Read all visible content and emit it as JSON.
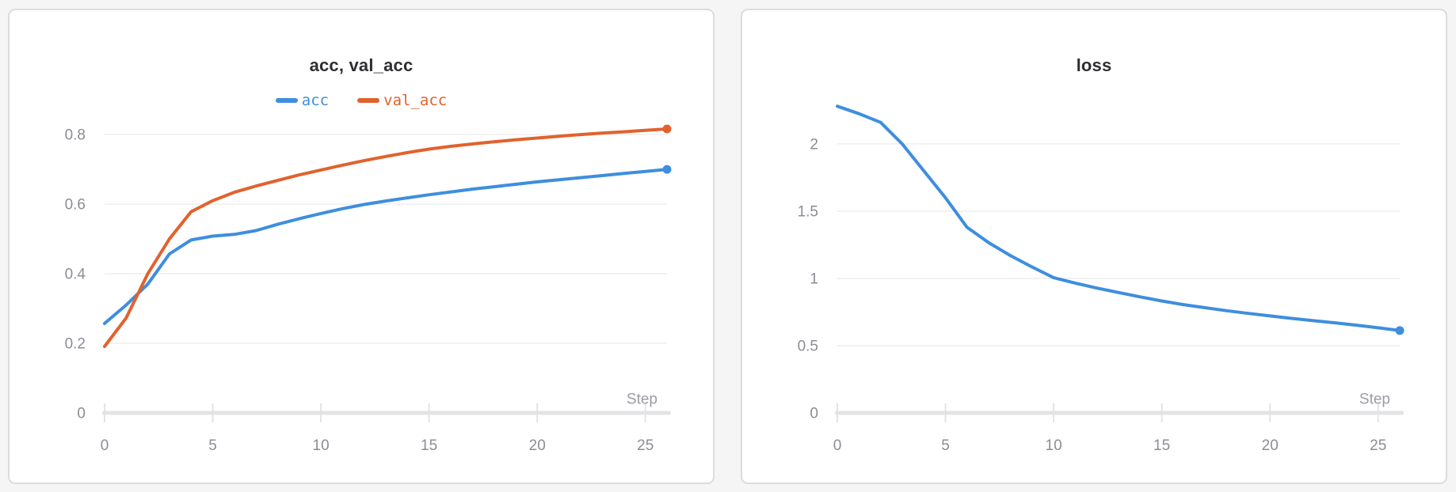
{
  "page": {
    "background_color": "#f5f5f6"
  },
  "style": {
    "panel_background": "#ffffff",
    "panel_border_color": "#dcdcdc",
    "title_color": "#2f2f33",
    "tick_label_color": "#8c8c96",
    "axis_label_color": "#9b9ba3",
    "gridline_color": "#ededee",
    "axis_bar_color": "#e4e4e6",
    "tick_mark_color": "#e1e1e4",
    "series_blue": "#3e8ede",
    "series_orange": "#e1622d"
  },
  "chart_data": [
    {
      "type": "line",
      "title": "acc, val_acc",
      "xlabel": "Step",
      "grid": true,
      "legend": true,
      "legend_position": "top",
      "xlim": [
        0,
        26
      ],
      "ylim": [
        0,
        0.882
      ],
      "x": [
        0,
        1,
        2,
        3,
        4,
        5,
        6,
        7,
        8,
        9,
        10,
        11,
        12,
        13,
        14,
        15,
        16,
        17,
        18,
        19,
        20,
        21,
        22,
        23,
        24,
        25,
        26
      ],
      "x_ticks": [
        0,
        5,
        10,
        15,
        20,
        25
      ],
      "x_tick_labels": [
        "0",
        "5",
        "10",
        "15",
        "20",
        "25"
      ],
      "y_ticks": [
        {
          "value": 0,
          "label": "0"
        },
        {
          "value": 0.2,
          "label": "0.2"
        },
        {
          "value": 0.4,
          "label": "0.4"
        },
        {
          "value": 0.6,
          "label": "0.6"
        },
        {
          "value": 0.8,
          "label": "0.8"
        }
      ],
      "series": [
        {
          "name": "acc",
          "color": "#3e8ede",
          "endpoint_dot": true,
          "values": [
            0.257,
            0.31,
            0.37,
            0.457,
            0.497,
            0.508,
            0.513,
            0.524,
            0.542,
            0.558,
            0.573,
            0.587,
            0.599,
            0.609,
            0.618,
            0.627,
            0.635,
            0.643,
            0.65,
            0.657,
            0.664,
            0.67,
            0.676,
            0.682,
            0.688,
            0.694,
            0.7
          ]
        },
        {
          "name": "val_acc",
          "color": "#e1622d",
          "endpoint_dot": true,
          "values": [
            0.191,
            0.273,
            0.4,
            0.5,
            0.578,
            0.61,
            0.634,
            0.652,
            0.668,
            0.684,
            0.698,
            0.712,
            0.725,
            0.737,
            0.748,
            0.758,
            0.766,
            0.773,
            0.779,
            0.785,
            0.79,
            0.795,
            0.8,
            0.804,
            0.808,
            0.812,
            0.816
          ]
        }
      ]
    },
    {
      "type": "line",
      "title": "loss",
      "xlabel": "Step",
      "grid": true,
      "legend": false,
      "xlim": [
        0,
        26
      ],
      "ylim": [
        0,
        2.282
      ],
      "x": [
        0,
        1,
        2,
        3,
        4,
        5,
        6,
        7,
        8,
        9,
        10,
        11,
        12,
        13,
        14,
        15,
        16,
        17,
        18,
        19,
        20,
        21,
        22,
        23,
        24,
        25,
        26
      ],
      "x_ticks": [
        0,
        5,
        10,
        15,
        20,
        25
      ],
      "x_tick_labels": [
        "0",
        "5",
        "10",
        "15",
        "20",
        "25"
      ],
      "y_ticks": [
        {
          "value": 0,
          "label": "0"
        },
        {
          "value": 0.5,
          "label": "0.5"
        },
        {
          "value": 1,
          "label": "1"
        },
        {
          "value": 1.5,
          "label": "1.5"
        },
        {
          "value": 2,
          "label": "2"
        }
      ],
      "series": [
        {
          "name": "loss",
          "color": "#3e8ede",
          "endpoint_dot": true,
          "values": [
            2.28,
            2.225,
            2.16,
            2.0,
            1.8,
            1.6,
            1.38,
            1.265,
            1.17,
            1.085,
            1.005,
            0.965,
            0.928,
            0.895,
            0.863,
            0.832,
            0.805,
            0.782,
            0.76,
            0.74,
            0.721,
            0.703,
            0.686,
            0.67,
            0.652,
            0.633,
            0.612
          ]
        }
      ]
    }
  ]
}
